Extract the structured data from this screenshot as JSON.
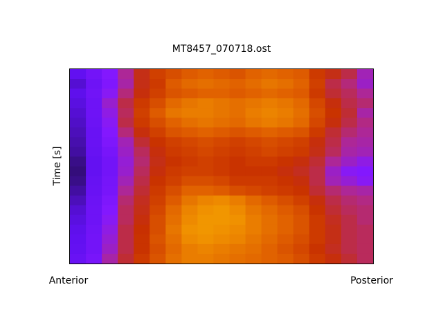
{
  "chart_data": {
    "type": "heatmap",
    "title": "MT8457_070718.ost",
    "ylabel": "Time [s]",
    "x_end_labels": [
      "Anterior",
      "Posterior"
    ],
    "zlim": [
      0,
      1
    ],
    "colormap": [
      "#1c0c3c",
      "#6010f0",
      "#8418ff",
      "#b02890",
      "#c83000",
      "#e06000",
      "#f09000",
      "#f8b800"
    ],
    "z": [
      [
        0.15,
        0.22,
        0.28,
        0.42,
        0.55,
        0.62,
        0.66,
        0.7,
        0.72,
        0.7,
        0.68,
        0.72,
        0.74,
        0.72,
        0.7,
        0.6,
        0.55,
        0.5,
        0.38
      ],
      [
        0.12,
        0.2,
        0.27,
        0.4,
        0.55,
        0.6,
        0.7,
        0.74,
        0.76,
        0.74,
        0.72,
        0.75,
        0.78,
        0.76,
        0.72,
        0.62,
        0.5,
        0.45,
        0.36
      ],
      [
        0.14,
        0.21,
        0.3,
        0.45,
        0.56,
        0.62,
        0.68,
        0.7,
        0.72,
        0.72,
        0.7,
        0.72,
        0.74,
        0.72,
        0.7,
        0.6,
        0.52,
        0.48,
        0.42
      ],
      [
        0.13,
        0.2,
        0.35,
        0.5,
        0.6,
        0.66,
        0.74,
        0.78,
        0.8,
        0.78,
        0.76,
        0.78,
        0.8,
        0.78,
        0.74,
        0.64,
        0.56,
        0.5,
        0.46
      ],
      [
        0.12,
        0.2,
        0.32,
        0.48,
        0.62,
        0.7,
        0.78,
        0.8,
        0.8,
        0.78,
        0.76,
        0.8,
        0.82,
        0.8,
        0.76,
        0.66,
        0.58,
        0.52,
        0.4
      ],
      [
        0.11,
        0.19,
        0.3,
        0.5,
        0.6,
        0.66,
        0.72,
        0.76,
        0.78,
        0.76,
        0.74,
        0.78,
        0.8,
        0.78,
        0.74,
        0.64,
        0.56,
        0.5,
        0.44
      ],
      [
        0.1,
        0.18,
        0.28,
        0.45,
        0.56,
        0.62,
        0.68,
        0.7,
        0.72,
        0.7,
        0.68,
        0.7,
        0.72,
        0.7,
        0.68,
        0.6,
        0.52,
        0.46,
        0.42
      ],
      [
        0.09,
        0.18,
        0.26,
        0.38,
        0.52,
        0.58,
        0.62,
        0.64,
        0.66,
        0.64,
        0.62,
        0.64,
        0.66,
        0.64,
        0.62,
        0.56,
        0.5,
        0.42,
        0.4
      ],
      [
        0.08,
        0.17,
        0.24,
        0.36,
        0.48,
        0.56,
        0.6,
        0.62,
        0.64,
        0.62,
        0.6,
        0.62,
        0.64,
        0.62,
        0.6,
        0.55,
        0.48,
        0.4,
        0.38
      ],
      [
        0.06,
        0.16,
        0.22,
        0.34,
        0.46,
        0.55,
        0.58,
        0.6,
        0.62,
        0.6,
        0.58,
        0.6,
        0.6,
        0.58,
        0.56,
        0.52,
        0.42,
        0.36,
        0.32
      ],
      [
        0.05,
        0.16,
        0.22,
        0.35,
        0.48,
        0.56,
        0.6,
        0.62,
        0.62,
        0.6,
        0.58,
        0.58,
        0.58,
        0.56,
        0.54,
        0.5,
        0.36,
        0.3,
        0.28
      ],
      [
        0.06,
        0.17,
        0.23,
        0.38,
        0.5,
        0.58,
        0.62,
        0.66,
        0.66,
        0.64,
        0.6,
        0.6,
        0.6,
        0.58,
        0.56,
        0.5,
        0.38,
        0.34,
        0.3
      ],
      [
        0.08,
        0.18,
        0.24,
        0.42,
        0.52,
        0.6,
        0.66,
        0.72,
        0.72,
        0.7,
        0.66,
        0.64,
        0.62,
        0.6,
        0.58,
        0.52,
        0.46,
        0.42,
        0.4
      ],
      [
        0.1,
        0.19,
        0.26,
        0.46,
        0.54,
        0.62,
        0.7,
        0.78,
        0.82,
        0.84,
        0.8,
        0.74,
        0.7,
        0.66,
        0.62,
        0.56,
        0.5,
        0.46,
        0.44
      ],
      [
        0.12,
        0.2,
        0.28,
        0.48,
        0.55,
        0.64,
        0.74,
        0.82,
        0.86,
        0.88,
        0.84,
        0.78,
        0.74,
        0.7,
        0.66,
        0.58,
        0.52,
        0.48,
        0.46
      ],
      [
        0.13,
        0.2,
        0.3,
        0.48,
        0.56,
        0.66,
        0.76,
        0.84,
        0.88,
        0.88,
        0.86,
        0.8,
        0.76,
        0.72,
        0.68,
        0.6,
        0.54,
        0.5,
        0.46
      ],
      [
        0.14,
        0.21,
        0.32,
        0.5,
        0.57,
        0.66,
        0.78,
        0.86,
        0.88,
        0.86,
        0.84,
        0.8,
        0.76,
        0.72,
        0.68,
        0.6,
        0.55,
        0.5,
        0.48
      ],
      [
        0.15,
        0.22,
        0.34,
        0.5,
        0.58,
        0.68,
        0.76,
        0.84,
        0.86,
        0.84,
        0.82,
        0.78,
        0.74,
        0.7,
        0.66,
        0.6,
        0.55,
        0.5,
        0.48
      ],
      [
        0.16,
        0.22,
        0.36,
        0.5,
        0.58,
        0.66,
        0.74,
        0.8,
        0.82,
        0.8,
        0.78,
        0.76,
        0.72,
        0.68,
        0.64,
        0.58,
        0.54,
        0.5,
        0.48
      ],
      [
        0.18,
        0.24,
        0.4,
        0.52,
        0.6,
        0.68,
        0.76,
        0.8,
        0.8,
        0.78,
        0.76,
        0.74,
        0.72,
        0.7,
        0.66,
        0.6,
        0.56,
        0.52,
        0.48
      ]
    ]
  }
}
